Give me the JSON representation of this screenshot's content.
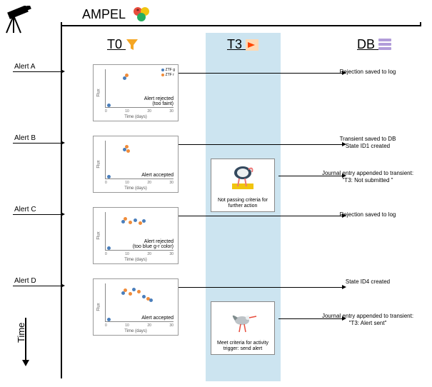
{
  "title": "AMPEL",
  "columns": {
    "t0": "T0",
    "t3": "T3",
    "db": "DB"
  },
  "colors": {
    "ztf_g": "#4a7ebb",
    "ztf_r": "#f08c3a",
    "t3_band": "#cce4f0",
    "funnel": "#f5a623",
    "arrow_box": "#ffd9b3",
    "arrow_fill": "#ff4500",
    "db_bar": "#b19cd9",
    "ampel_red": "#e74c3c",
    "ampel_yellow": "#f1c40f",
    "ampel_green": "#27ae60"
  },
  "legend": {
    "g": "ZTF g",
    "r": "ZTF r"
  },
  "chart_axes": {
    "xlabel": "Time (days)",
    "ylabel": "Flux",
    "xlim": [
      0,
      35
    ],
    "xticks": [
      "0",
      "10",
      "20",
      "30"
    ]
  },
  "time_axis_label": "Time",
  "alerts": [
    {
      "label": "Alert A",
      "status": "Alert rejected\n(too faint)",
      "db_texts": [
        "Rejection saved to log"
      ],
      "t3": null,
      "points": [
        {
          "x": 0.02,
          "y": 0.85,
          "c": "g"
        },
        {
          "x": 0.24,
          "y": 0.18,
          "c": "g"
        },
        {
          "x": 0.28,
          "y": 0.1,
          "c": "r"
        }
      ]
    },
    {
      "label": "Alert B",
      "status": "Alert accepted",
      "db_texts": [
        "Transient saved to DB\nState ID1 created",
        "Journal entry appended to transient:\n\"T3: Not submitted \""
      ],
      "t3": {
        "caption": "Not passing criteria for further action",
        "bird": "ostrich"
      },
      "points": [
        {
          "x": 0.02,
          "y": 0.85,
          "c": "g"
        },
        {
          "x": 0.24,
          "y": 0.18,
          "c": "g"
        },
        {
          "x": 0.28,
          "y": 0.1,
          "c": "r"
        },
        {
          "x": 0.3,
          "y": 0.22,
          "c": "r"
        }
      ]
    },
    {
      "label": "Alert C",
      "status": "Alert rejected\n(too blue g-r color)",
      "db_texts": [
        "Rejection saved to log"
      ],
      "t3": null,
      "points": [
        {
          "x": 0.02,
          "y": 0.86,
          "c": "g"
        },
        {
          "x": 0.22,
          "y": 0.2,
          "c": "g"
        },
        {
          "x": 0.26,
          "y": 0.12,
          "c": "r"
        },
        {
          "x": 0.33,
          "y": 0.21,
          "c": "r"
        },
        {
          "x": 0.4,
          "y": 0.16,
          "c": "g"
        },
        {
          "x": 0.47,
          "y": 0.23,
          "c": "r"
        },
        {
          "x": 0.52,
          "y": 0.17,
          "c": "g"
        }
      ]
    },
    {
      "label": "Alert D",
      "status": "Alert accepted",
      "db_texts": [
        "State ID4 created",
        "Journal entry appended to transient:\n\"T3: Alert sent\""
      ],
      "t3": {
        "caption": "Meet criteria for activity trigger: send alert",
        "bird": "stork"
      },
      "points": [
        {
          "x": 0.02,
          "y": 0.86,
          "c": "g"
        },
        {
          "x": 0.22,
          "y": 0.2,
          "c": "g"
        },
        {
          "x": 0.26,
          "y": 0.12,
          "c": "r"
        },
        {
          "x": 0.33,
          "y": 0.21,
          "c": "r"
        },
        {
          "x": 0.38,
          "y": 0.1,
          "c": "g"
        },
        {
          "x": 0.45,
          "y": 0.16,
          "c": "r"
        },
        {
          "x": 0.52,
          "y": 0.28,
          "c": "g"
        },
        {
          "x": 0.58,
          "y": 0.34,
          "c": "r"
        },
        {
          "x": 0.62,
          "y": 0.38,
          "c": "g"
        }
      ]
    }
  ]
}
